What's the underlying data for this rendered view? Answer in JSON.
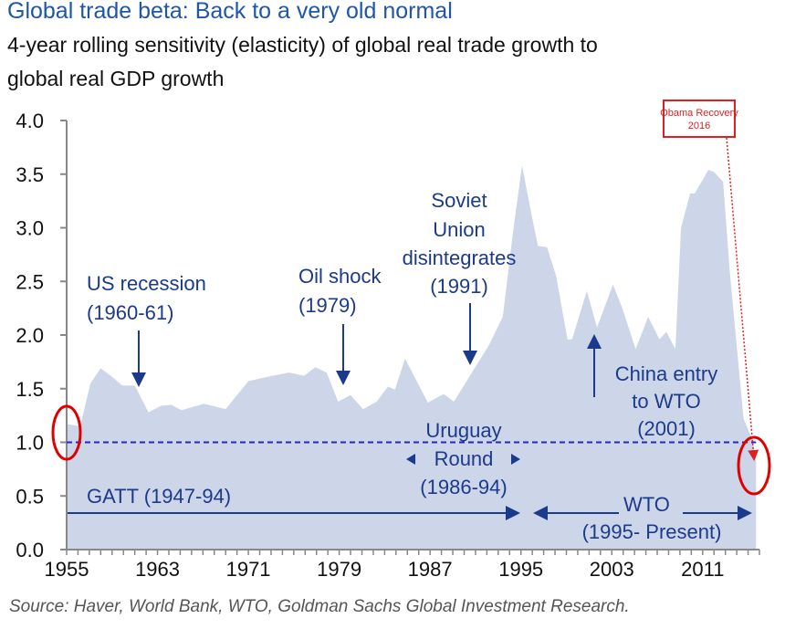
{
  "chart_data": {
    "type": "area",
    "title": "Global trade beta: Back to a very old normal",
    "subtitle_lines": [
      "4-year rolling sensitivity (elasticity) of global real trade growth to",
      "global real GDP growth"
    ],
    "source": "Source: Haver, World Bank, WTO, Goldman Sachs Global Investment Research.",
    "xlim": [
      1955,
      2016
    ],
    "ylim": [
      0,
      4
    ],
    "x_ticks": [
      "1955",
      "1963",
      "1971",
      "1979",
      "1987",
      "1995",
      "2003",
      "2011"
    ],
    "y_ticks": [
      "0.0",
      "0.5",
      "1.0",
      "1.5",
      "2.0",
      "2.5",
      "3.0",
      "3.5",
      "4.0"
    ],
    "grid": false,
    "fill_color": "#cdd6e8",
    "reference_line": {
      "y": 1.0,
      "color": "#2424d0",
      "style": "dashed"
    },
    "x": [
      1955.0,
      1956.2,
      1957.1,
      1958.0,
      1959.0,
      1959.9,
      1961.0,
      1962.2,
      1963.3,
      1964.2,
      1965.1,
      1967.1,
      1969.0,
      1971.0,
      1973.1,
      1974.6,
      1975.9,
      1976.9,
      1977.9,
      1978.9,
      1980.0,
      1981.1,
      1982.3,
      1983.3,
      1983.9,
      1984.8,
      1986.8,
      1988.2,
      1989.1,
      1992.2,
      1993.4,
      1994.3,
      1995.1,
      1996.0,
      1996.5,
      1997.3,
      1998.1,
      1999.1,
      1999.5,
      2000.8,
      2001.7,
      2003.1,
      2003.9,
      2005.1,
      2006.2,
      2007.2,
      2007.8,
      2008.6,
      2009.1,
      2009.9,
      2010.3,
      2011.5,
      2012.0,
      2012.8,
      2013.4,
      2014.6,
      2015.4,
      2015.7
    ],
    "y": [
      1.17,
      1.15,
      1.55,
      1.69,
      1.61,
      1.53,
      1.53,
      1.28,
      1.34,
      1.35,
      1.3,
      1.36,
      1.31,
      1.57,
      1.62,
      1.65,
      1.62,
      1.7,
      1.65,
      1.38,
      1.44,
      1.31,
      1.38,
      1.52,
      1.49,
      1.78,
      1.37,
      1.45,
      1.38,
      1.91,
      2.17,
      2.96,
      3.58,
      3.09,
      2.83,
      2.82,
      2.55,
      1.96,
      1.96,
      2.41,
      2.07,
      2.47,
      2.26,
      1.87,
      2.17,
      1.96,
      2.03,
      1.87,
      3.0,
      3.32,
      3.32,
      3.54,
      3.52,
      3.43,
      2.58,
      1.22,
      1.02,
      0.82
    ],
    "annotations": {
      "us_recession": [
        "US recession",
        "(1960-61)"
      ],
      "oil_shock": [
        "Oil shock",
        "(1979)"
      ],
      "soviet": [
        "Soviet",
        "Union",
        "disintegrates",
        "(1991)"
      ],
      "china": [
        "China entry",
        "to WTO",
        "(2001)"
      ],
      "uruguay": [
        "Uruguay",
        "Round",
        "(1986-94)"
      ],
      "gatt": "GATT (1947-94)",
      "wto": [
        "WTO",
        "(1995- Present)"
      ],
      "obama": [
        "Obama Recovery",
        "2016"
      ]
    },
    "highlight_color": "#e00000",
    "annotation_color": "#1b3a8c"
  }
}
